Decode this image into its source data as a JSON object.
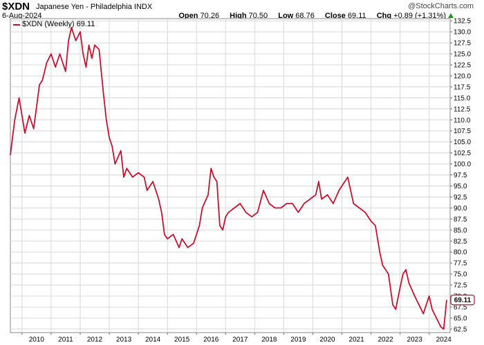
{
  "header": {
    "symbol": "$XDN",
    "name": "Japanese Yen - Philadelphia",
    "exchange": "INDX",
    "date": "6-Aug-2024",
    "watermark": "@StockCharts.com",
    "open_label": "Open",
    "open": "70.26",
    "high_label": "High",
    "high": "70.50",
    "low_label": "Low",
    "low": "68.76",
    "close_label": "Close",
    "close": "69.11",
    "chg_label": "Chg",
    "chg": "+0.89 (+1.31%)"
  },
  "legend": {
    "label": "$XDN (Weekly) 69.11"
  },
  "colors": {
    "line": "#c8102e",
    "grid": "#d8d8d8",
    "up": "#1a9a1a"
  },
  "chart_data": {
    "type": "line",
    "title": "$XDN Japanese Yen - Philadelphia INDX",
    "series": [
      {
        "name": "$XDN (Weekly)",
        "x": [
          2009.6,
          2009.75,
          2009.9,
          2010.1,
          2010.25,
          2010.4,
          2010.6,
          2010.7,
          2010.85,
          2011.0,
          2011.15,
          2011.3,
          2011.5,
          2011.6,
          2011.7,
          2011.85,
          2012.0,
          2012.1,
          2012.2,
          2012.3,
          2012.4,
          2012.5,
          2012.65,
          2012.8,
          2012.9,
          2013.0,
          2013.1,
          2013.2,
          2013.4,
          2013.5,
          2013.6,
          2013.8,
          2014.0,
          2014.2,
          2014.3,
          2014.5,
          2014.6,
          2014.7,
          2014.8,
          2014.9,
          2015.0,
          2015.2,
          2015.4,
          2015.5,
          2015.7,
          2015.9,
          2016.0,
          2016.1,
          2016.2,
          2016.4,
          2016.5,
          2016.6,
          2016.7,
          2016.8,
          2016.9,
          2017.0,
          2017.1,
          2017.3,
          2017.5,
          2017.7,
          2017.9,
          2018.1,
          2018.3,
          2018.5,
          2018.7,
          2018.9,
          2019.1,
          2019.3,
          2019.5,
          2019.7,
          2019.9,
          2020.1,
          2020.2,
          2020.3,
          2020.5,
          2020.7,
          2020.9,
          2021.0,
          2021.2,
          2021.4,
          2021.6,
          2021.8,
          2022.0,
          2022.15,
          2022.3,
          2022.4,
          2022.6,
          2022.75,
          2022.85,
          2023.0,
          2023.1,
          2023.2,
          2023.3,
          2023.5,
          2023.65,
          2023.8,
          2023.9,
          2024.0,
          2024.1,
          2024.25,
          2024.4,
          2024.5,
          2024.6
        ],
        "values": [
          102.0,
          110.0,
          115.0,
          107.0,
          111.0,
          108.0,
          118.0,
          119.0,
          123.0,
          125.0,
          122.0,
          125.0,
          121.0,
          128.0,
          131.0,
          128.0,
          130.0,
          125.0,
          122.0,
          127.0,
          124.0,
          127.0,
          126.0,
          116.0,
          110.0,
          106.0,
          104.0,
          100.0,
          103.0,
          97.0,
          99.0,
          97.0,
          98.0,
          97.0,
          94.0,
          96.0,
          94.0,
          92.0,
          89.0,
          84.0,
          83.0,
          84.0,
          81.0,
          83.0,
          81.0,
          82.0,
          84.0,
          86.0,
          90.0,
          93.0,
          99.0,
          97.0,
          96.0,
          86.0,
          85.0,
          88.0,
          89.0,
          90.0,
          91.0,
          89.0,
          88.0,
          89.0,
          94.0,
          91.0,
          90.0,
          90.0,
          91.0,
          91.0,
          89.0,
          91.0,
          92.0,
          93.0,
          96.0,
          92.0,
          93.0,
          91.0,
          94.0,
          95.0,
          97.0,
          91.0,
          90.0,
          89.0,
          87.0,
          86.0,
          80.0,
          77.0,
          75.0,
          68.0,
          67.0,
          72.0,
          75.0,
          76.0,
          73.0,
          70.0,
          68.0,
          66.0,
          68.0,
          70.0,
          67.0,
          65.0,
          63.0,
          62.5,
          69.11
        ]
      }
    ],
    "last_value": "69.11",
    "xlim": [
      2009.6,
      2024.72
    ],
    "ylim": [
      61.7,
      133.0
    ],
    "x_ticks": [
      "2010",
      "2011",
      "2012",
      "2013",
      "2014",
      "2015",
      "2016",
      "2017",
      "2018",
      "2019",
      "2020",
      "2021",
      "2022",
      "2023",
      "2024"
    ],
    "y_ticks": [
      "62.5",
      "65.0",
      "67.5",
      "70.0",
      "72.5",
      "75.0",
      "77.5",
      "80.0",
      "82.5",
      "85.0",
      "87.5",
      "90.0",
      "92.5",
      "95.0",
      "97.5",
      "100.0",
      "102.5",
      "105.0",
      "107.5",
      "110.0",
      "112.5",
      "115.0",
      "117.5",
      "120.0",
      "122.5",
      "125.0",
      "127.5",
      "130.0",
      "132.5"
    ],
    "grid": true,
    "legend_position": "top-left",
    "y_axis_side": "right"
  }
}
